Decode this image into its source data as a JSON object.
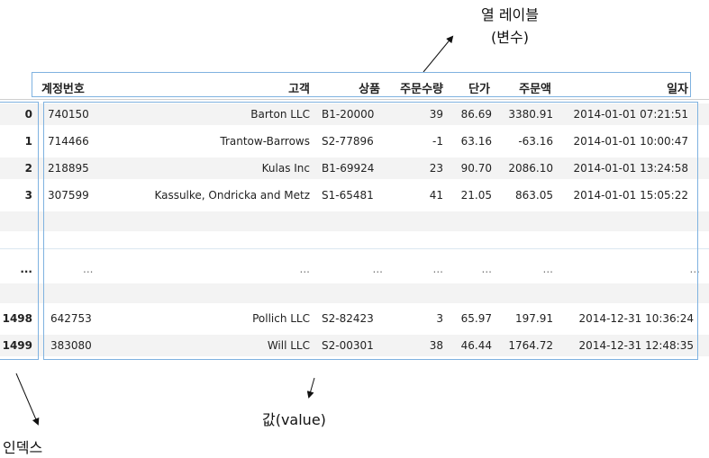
{
  "annotations": {
    "column_label_line1": "열 레이블",
    "column_label_line2": "(변수)",
    "value_label": "값(value)",
    "index_label": "인덱스"
  },
  "columns": [
    "계정번호",
    "고객",
    "상품",
    "주문수량",
    "단가",
    "주문액",
    "일자"
  ],
  "rows": [
    {
      "index": "0",
      "cells": [
        "740150",
        "Barton LLC",
        "B1-20000",
        "39",
        "86.69",
        "3380.91",
        "2014-01-01 07:21:51"
      ]
    },
    {
      "index": "1",
      "cells": [
        "714466",
        "Trantow-Barrows",
        "S2-77896",
        "-1",
        "63.16",
        "-63.16",
        "2014-01-01 10:00:47"
      ]
    },
    {
      "index": "2",
      "cells": [
        "218895",
        "Kulas Inc",
        "B1-69924",
        "23",
        "90.70",
        "2086.10",
        "2014-01-01 13:24:58"
      ]
    },
    {
      "index": "3",
      "cells": [
        "307599",
        "Kassulke, Ondricka and Metz",
        "S1-65481",
        "41",
        "21.05",
        "863.05",
        "2014-01-01 15:05:22"
      ]
    },
    {
      "index": "...",
      "cells": [
        "...",
        "...",
        "...",
        "...",
        "...",
        "...",
        "..."
      ]
    },
    {
      "index": "1498",
      "cells": [
        "642753",
        "Pollich LLC",
        "S2-82423",
        "3",
        "65.97",
        "197.91",
        "2014-12-31 10:36:24"
      ]
    },
    {
      "index": "1499",
      "cells": [
        "383080",
        "Will LLC",
        "S2-00301",
        "38",
        "46.44",
        "1764.72",
        "2014-12-31 12:48:35"
      ]
    }
  ]
}
